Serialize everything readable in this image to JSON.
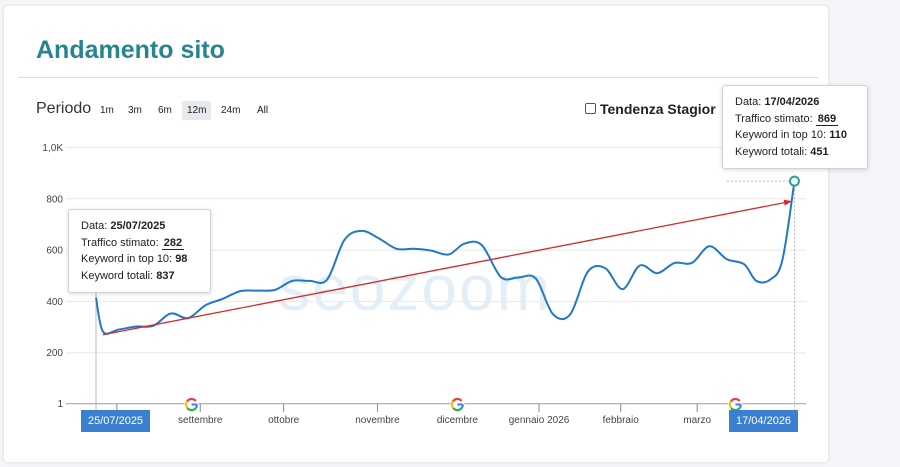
{
  "panel": {
    "title": "Andamento sito",
    "period_label": "Periodo",
    "ranges": [
      "1m",
      "3m",
      "6m",
      "12m",
      "24m",
      "All"
    ],
    "selected_range": "12m",
    "seasonal_checkbox_label": "Tendenza Stagior",
    "seasonal_checked": false,
    "watermark": "seozoom"
  },
  "tooltip_start": {
    "date_label": "Data:",
    "date_value": "25/07/2025",
    "traffic_label": "Traffico stimato:",
    "traffic_value": "282",
    "top10_label": "Keyword in top 10:",
    "top10_value": "98",
    "total_label": "Keyword totali:",
    "total_value": "837"
  },
  "tooltip_end": {
    "date_label": "Data:",
    "date_value": "17/04/2026",
    "traffic_label": "Traffico stimato:",
    "traffic_value": "869",
    "top10_label": "Keyword in top 10:",
    "top10_value": "110",
    "total_label": "Keyword totali:",
    "total_value": "451"
  },
  "start_date_label": "25/07/2025",
  "end_date_label": "17/04/2026",
  "colors": {
    "title": "#2a8490",
    "line": "#1f78c8",
    "trend": "#d42a2a",
    "date_box": "#3b7fd0",
    "end_marker": "#2aa198"
  },
  "chart_data": {
    "type": "line",
    "ylim": [
      1,
      1000
    ],
    "y_ticks": [
      {
        "value": 1,
        "label": "1"
      },
      {
        "value": 200,
        "label": "200"
      },
      {
        "value": 400,
        "label": "400"
      },
      {
        "value": 600,
        "label": "600"
      },
      {
        "value": 800,
        "label": "800"
      },
      {
        "value": 1000,
        "label": "1,0K"
      }
    ],
    "x_range": [
      0,
      38.5
    ],
    "x_ticks": [
      {
        "week": 1.2,
        "label": ""
      },
      {
        "week": 6.0,
        "label": "settembre"
      },
      {
        "week": 10.8,
        "label": "ottobre"
      },
      {
        "week": 16.2,
        "label": "novembre"
      },
      {
        "week": 20.8,
        "label": "dicembre"
      },
      {
        "week": 25.5,
        "label": "gennaio 2026"
      },
      {
        "week": 30.2,
        "label": "febbraio"
      },
      {
        "week": 34.6,
        "label": "marzo"
      }
    ],
    "google_update_markers": [
      5.5,
      20.8,
      36.8
    ],
    "series": [
      {
        "values": [
          [
            0,
            415
          ],
          [
            0.4,
            282
          ],
          [
            1.3,
            290
          ],
          [
            2.3,
            302
          ],
          [
            3.3,
            305
          ],
          [
            4.3,
            353
          ],
          [
            5.3,
            335
          ],
          [
            6.3,
            385
          ],
          [
            7.3,
            410
          ],
          [
            8.3,
            440
          ],
          [
            9.3,
            442
          ],
          [
            10.3,
            445
          ],
          [
            11.3,
            480
          ],
          [
            12.3,
            480
          ],
          [
            13.3,
            485
          ],
          [
            14.3,
            640
          ],
          [
            15.3,
            675
          ],
          [
            16.3,
            645
          ],
          [
            17.3,
            605
          ],
          [
            18.3,
            605
          ],
          [
            19.3,
            598
          ],
          [
            20.3,
            583
          ],
          [
            21.2,
            625
          ],
          [
            22.2,
            620
          ],
          [
            23.3,
            495
          ],
          [
            24.3,
            493
          ],
          [
            25.3,
            490
          ],
          [
            26.3,
            350
          ],
          [
            27.3,
            350
          ],
          [
            28.3,
            515
          ],
          [
            29.3,
            530
          ],
          [
            30.3,
            448
          ],
          [
            31.3,
            540
          ],
          [
            32.3,
            510
          ],
          [
            33.3,
            550
          ],
          [
            34.3,
            550
          ],
          [
            35.3,
            615
          ],
          [
            36.3,
            565
          ],
          [
            37.3,
            545
          ],
          [
            38.0,
            480
          ],
          [
            38.8,
            485
          ],
          [
            39.5,
            560
          ],
          [
            40.2,
            869
          ]
        ]
      }
    ],
    "trend_line": {
      "from": [
        0.4,
        270
      ],
      "to": [
        40.0,
        790
      ]
    }
  }
}
